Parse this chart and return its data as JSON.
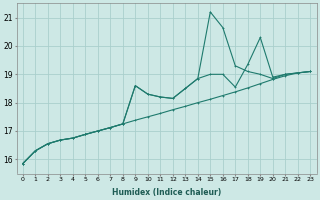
{
  "xlabel": "Humidex (Indice chaleur)",
  "bg_color": "#cde8e5",
  "grid_color": "#aacfcc",
  "line_color": "#1e7a6d",
  "xlim": [
    -0.5,
    23.5
  ],
  "ylim": [
    15.5,
    21.5
  ],
  "xticks": [
    0,
    1,
    2,
    3,
    4,
    5,
    6,
    7,
    8,
    9,
    10,
    11,
    12,
    13,
    14,
    15,
    16,
    17,
    18,
    19,
    20,
    21,
    22,
    23
  ],
  "yticks": [
    16,
    17,
    18,
    19,
    20,
    21
  ],
  "line1_x": [
    0,
    1,
    2,
    3,
    4,
    5,
    6,
    7,
    8,
    9,
    10,
    11,
    12,
    13,
    14,
    15,
    16,
    17,
    18,
    19,
    20,
    21,
    22,
    23
  ],
  "line1_y": [
    15.85,
    16.3,
    16.55,
    16.68,
    16.75,
    16.88,
    17.0,
    17.12,
    17.25,
    17.38,
    17.5,
    17.62,
    17.75,
    17.87,
    18.0,
    18.12,
    18.25,
    18.38,
    18.52,
    18.67,
    18.82,
    18.95,
    19.05,
    19.1
  ],
  "line2_x": [
    0,
    1,
    2,
    3,
    4,
    5,
    6,
    7,
    8,
    9,
    10,
    11,
    12,
    13,
    14,
    15,
    16,
    17,
    18,
    19,
    20,
    21,
    22,
    23
  ],
  "line2_y": [
    15.85,
    16.3,
    16.55,
    16.68,
    16.75,
    16.88,
    17.0,
    17.12,
    17.25,
    18.6,
    18.3,
    18.2,
    18.15,
    18.5,
    18.85,
    19.0,
    19.0,
    18.55,
    19.35,
    20.3,
    18.9,
    19.0,
    19.05,
    19.1
  ],
  "line3_x": [
    0,
    1,
    2,
    3,
    4,
    5,
    6,
    7,
    8,
    9,
    10,
    11,
    12,
    13,
    14,
    15,
    16,
    17,
    18,
    19,
    20,
    21,
    22,
    23
  ],
  "line3_y": [
    15.85,
    16.3,
    16.55,
    16.68,
    16.75,
    16.88,
    17.0,
    17.12,
    17.25,
    18.6,
    18.3,
    18.2,
    18.15,
    18.5,
    18.85,
    21.2,
    20.65,
    19.3,
    19.1,
    19.0,
    18.85,
    19.0,
    19.05,
    19.1
  ]
}
